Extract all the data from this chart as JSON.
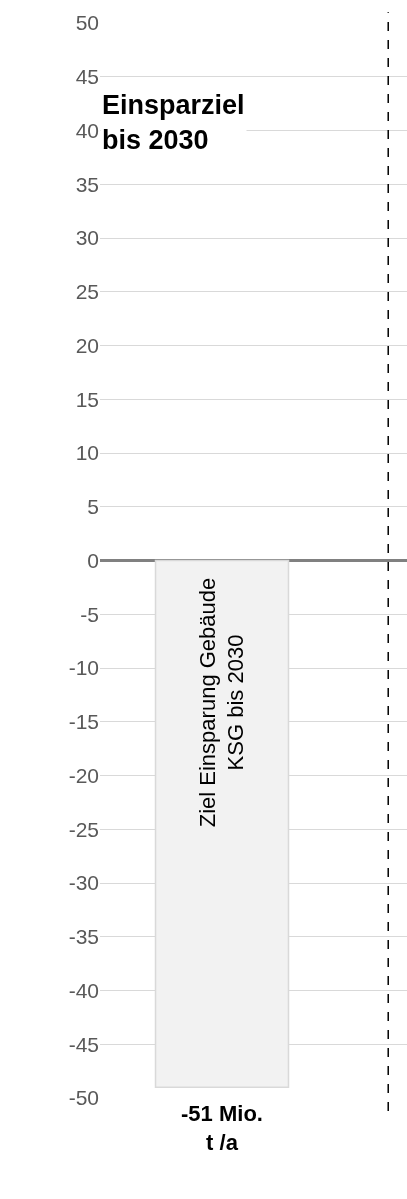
{
  "chart_data": {
    "type": "bar",
    "categories": [
      "-51 Mio.\nt /a"
    ],
    "values": [
      -49
    ],
    "color": "#f2f2f2",
    "ylim": [
      -50,
      50
    ],
    "yticks": [
      -50,
      -45,
      -40,
      -35,
      -30,
      -25,
      -20,
      -15,
      -10,
      -5,
      0,
      5,
      10,
      15,
      20,
      25,
      30,
      35,
      40,
      45,
      50
    ],
    "grid": "y",
    "annotations": [
      "Einsparziel\nbis 2030",
      "Ziel Einsparung Gebäude\nKSG bis 2030"
    ]
  }
}
